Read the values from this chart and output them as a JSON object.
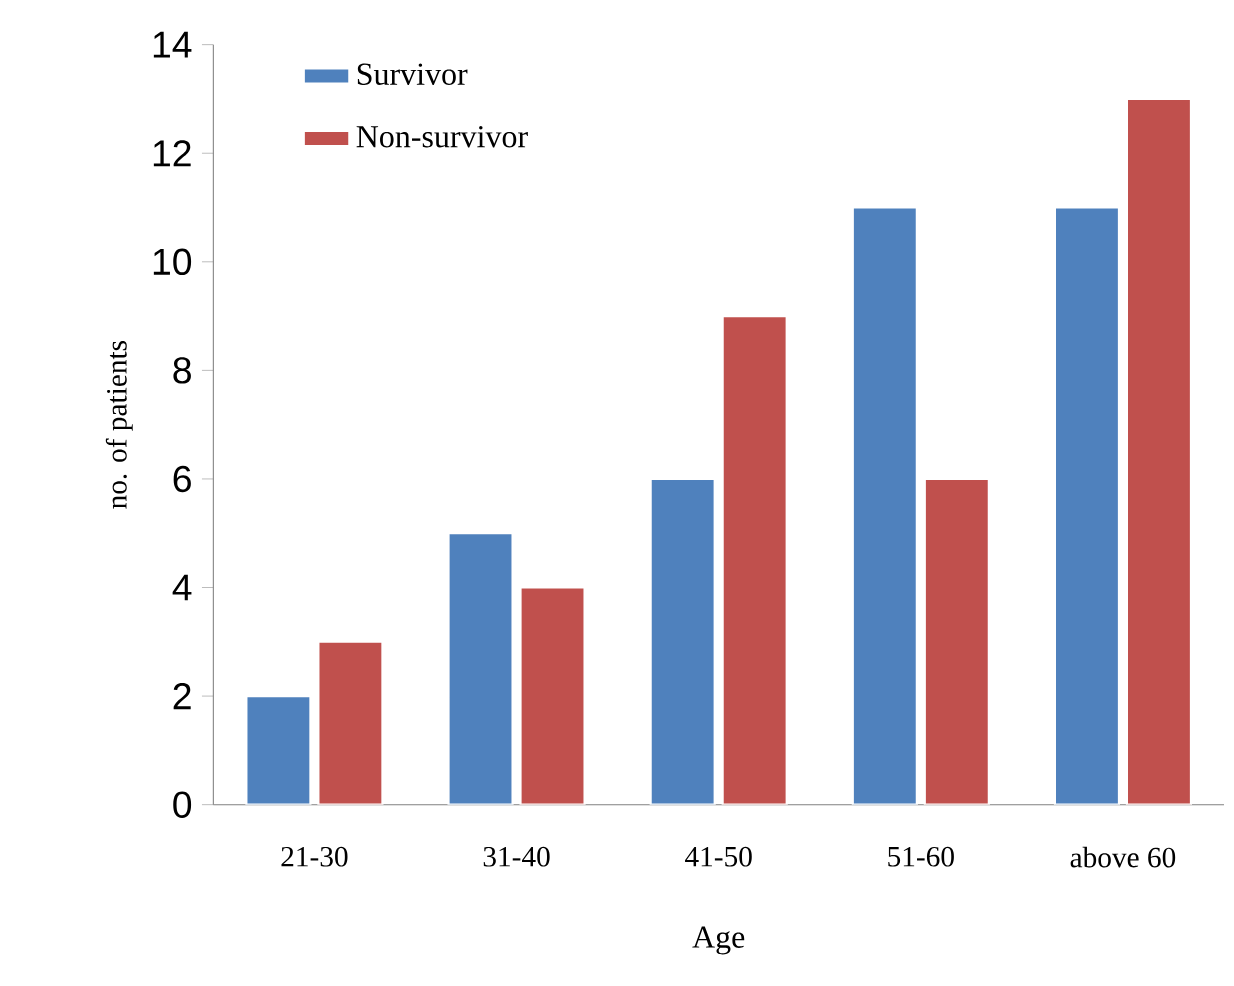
{
  "chart_data": {
    "type": "bar",
    "xlabel": "Age",
    "ylabel": "no. of patients",
    "categories": [
      "21-30",
      "31-40",
      "41-50",
      "51-60",
      "above 60"
    ],
    "series": [
      {
        "name": "Survivor",
        "color": "#4f81bd",
        "values": [
          2,
          5,
          6,
          11,
          11
        ]
      },
      {
        "name": "Non-survivor",
        "color": "#c0504d",
        "values": [
          3,
          4,
          9,
          6,
          13
        ]
      }
    ],
    "ylim": [
      0,
      14
    ],
    "yticks": [
      0,
      2,
      4,
      6,
      8,
      10,
      12,
      14
    ],
    "grid": false,
    "legend": "top left"
  }
}
